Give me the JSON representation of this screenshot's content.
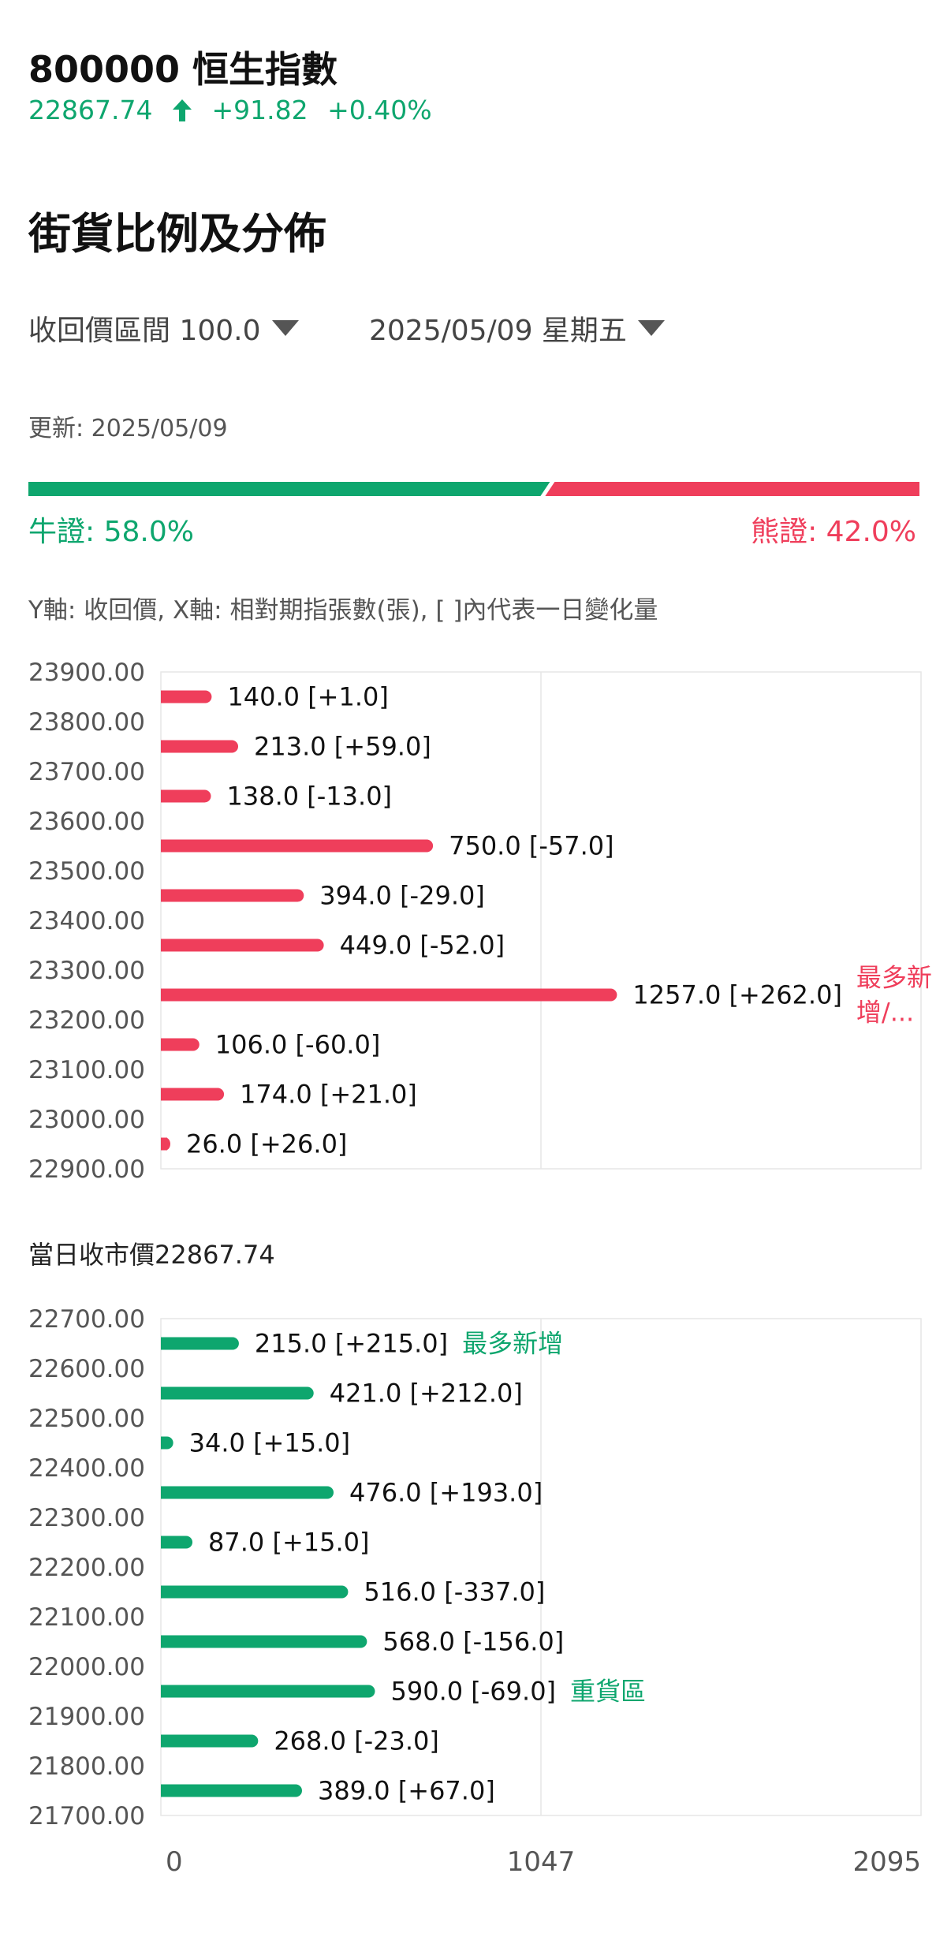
{
  "stock": {
    "code_name": "800000  恒生指數",
    "price": "22867.74",
    "change": "+91.82",
    "change_pct": "+0.40%",
    "trend": "up-arrow-icon"
  },
  "section_title": "街貨比例及分佈",
  "filters": {
    "recall_range": "收回價區間 100.0",
    "date": "2025/05/09 星期五"
  },
  "updated": "更新: 2025/05/09",
  "ratio": {
    "bull_label": "牛證: 58.0%",
    "bear_label": "熊證: 42.0%",
    "bull_pct": 58.0,
    "bear_pct": 42.0
  },
  "axis_note": "Y軸: 收回價, X軸: 相對期指張數(張), [ ]內代表一日變化量",
  "close_label": "當日收市價22867.74",
  "colors": {
    "bull": "#0ea66e",
    "bear": "#ef3e5b",
    "grid": "#e6e6e6"
  },
  "chart_data": [
    {
      "type": "bar",
      "orientation": "horizontal",
      "series_color": "#ef3e5b",
      "yticks": [
        "23900.00",
        "23800.00",
        "23700.00",
        "23600.00",
        "23500.00",
        "23400.00",
        "23300.00",
        "23200.00",
        "23100.00",
        "23000.00",
        "22900.00"
      ],
      "xlim": [
        0,
        2095
      ],
      "bars": [
        {
          "value": 140.0,
          "label": "140.0 [+1.0]"
        },
        {
          "value": 213.0,
          "label": "213.0 [+59.0]"
        },
        {
          "value": 138.0,
          "label": "138.0 [-13.0]"
        },
        {
          "value": 750.0,
          "label": "750.0 [-57.0]"
        },
        {
          "value": 394.0,
          "label": "394.0 [-29.0]"
        },
        {
          "value": 449.0,
          "label": "449.0 [-52.0]"
        },
        {
          "value": 1257.0,
          "label": "1257.0 [+262.0]",
          "note_lines": [
            "最多新",
            "增/..."
          ]
        },
        {
          "value": 106.0,
          "label": "106.0 [-60.0]"
        },
        {
          "value": 174.0,
          "label": "174.0 [+21.0]"
        },
        {
          "value": 26.0,
          "label": "26.0 [+26.0]"
        }
      ]
    },
    {
      "type": "bar",
      "orientation": "horizontal",
      "series_color": "#0ea66e",
      "yticks": [
        "22700.00",
        "22600.00",
        "22500.00",
        "22400.00",
        "22300.00",
        "22200.00",
        "22100.00",
        "22000.00",
        "21900.00",
        "21800.00",
        "21700.00"
      ],
      "xlim": [
        0,
        2095
      ],
      "xticks": [
        "0",
        "1047",
        "2095"
      ],
      "bars": [
        {
          "value": 215.0,
          "label": "215.0 [+215.0]",
          "note_lines": [
            "最多新增"
          ]
        },
        {
          "value": 421.0,
          "label": "421.0 [+212.0]"
        },
        {
          "value": 34.0,
          "label": "34.0 [+15.0]"
        },
        {
          "value": 476.0,
          "label": "476.0 [+193.0]"
        },
        {
          "value": 87.0,
          "label": "87.0 [+15.0]"
        },
        {
          "value": 516.0,
          "label": "516.0 [-337.0]"
        },
        {
          "value": 568.0,
          "label": "568.0 [-156.0]"
        },
        {
          "value": 590.0,
          "label": "590.0 [-69.0]",
          "note_lines": [
            "重貨區"
          ]
        },
        {
          "value": 268.0,
          "label": "268.0 [-23.0]"
        },
        {
          "value": 389.0,
          "label": "389.0 [+67.0]"
        }
      ]
    }
  ]
}
